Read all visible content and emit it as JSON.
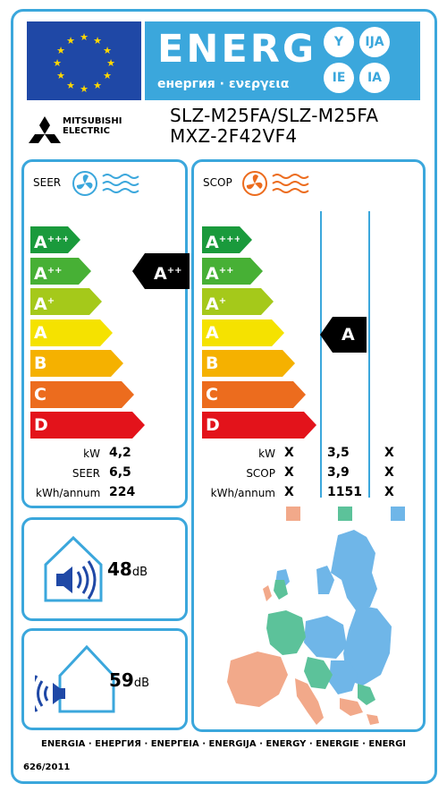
{
  "header": {
    "energy_word": "ENERG",
    "energy_sub": "енергия · ενεργεια",
    "languages": [
      "Y",
      "IJA",
      "IE",
      "IA"
    ],
    "brand_line1": "MITSUBISHI",
    "brand_line2": "ELECTRIC",
    "model_line1": "SLZ-M25FA/SLZ-M25FA",
    "model_line2": "MXZ-2F42VF4"
  },
  "scale": [
    "A+++",
    "A++",
    "A+",
    "A",
    "B",
    "C",
    "D"
  ],
  "seer": {
    "title": "SEER",
    "class": "A++",
    "rows": [
      {
        "label": "kW",
        "value": "4,2"
      },
      {
        "label": "SEER",
        "value": "6,5"
      },
      {
        "label": "kWh/annum",
        "value": "224"
      }
    ]
  },
  "scop": {
    "title": "SCOP",
    "class": "A",
    "rows": [
      {
        "label": "kW",
        "values": [
          "X",
          "3,5",
          "X"
        ]
      },
      {
        "label": "SCOP",
        "values": [
          "X",
          "3,9",
          "X"
        ]
      },
      {
        "label": "kWh/annum",
        "values": [
          "X",
          "1151",
          "X"
        ]
      }
    ],
    "zone_colors": [
      "#f2a98a",
      "#5cc29a",
      "#6fb6e8"
    ]
  },
  "noise": {
    "indoor_value": "48",
    "outdoor_value": "59",
    "unit": "dB"
  },
  "footer": {
    "energia": "ENERGIA · ЕНЕРГИЯ · ΕΝΕΡΓΕΙΑ · ENERGIJA · ENERGY · ENERGIE · ENERGI",
    "regulation": "626/2011"
  },
  "colors": {
    "frame": "#3ba7dc",
    "eu_blue": "#1f48a6",
    "class_colors": [
      "#1a9a3c",
      "#47b035",
      "#a5c91a",
      "#f5e200",
      "#f5b100",
      "#ec6c1e",
      "#e3131b"
    ]
  }
}
